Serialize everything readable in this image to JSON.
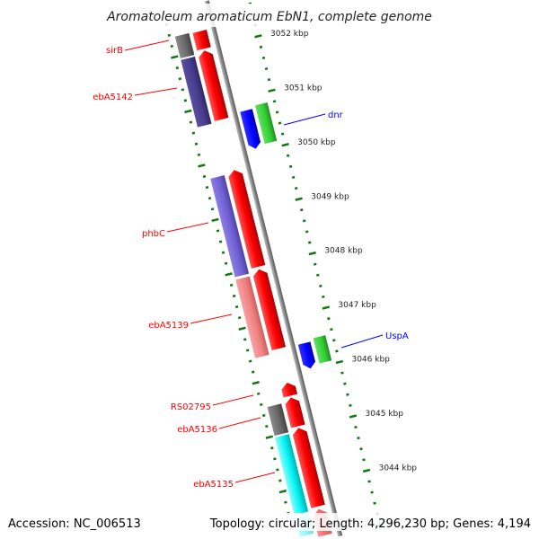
{
  "title": "Aromatoleum aromaticum EbN1, complete genome",
  "footer": {
    "accession": "Accession: NC_006513",
    "summary": "Topology: circular; Length: 4,296,230 bp; Genes: 4,194"
  },
  "kbp_labels": [
    "3052 kbp",
    "3051 kbp",
    "3050 kbp",
    "3049 kbp",
    "3048 kbp",
    "3047 kbp",
    "3046 kbp",
    "3045 kbp",
    "3044 kbp"
  ],
  "gene_labels": {
    "sirB": "sirB",
    "ebA5142": "ebA5142",
    "phbC": "phbC",
    "ebA5139": "ebA5139",
    "RS02795": "RS02795",
    "ebA5136": "ebA5136",
    "ebA5135": "ebA5135",
    "dnr": "dnr",
    "UspA": "UspA"
  },
  "colors": {
    "forward_cds": "#ff0000",
    "left_label": "#ff0000",
    "right_label": "#0000ff",
    "backbone": "#888888",
    "ticks": "#117711"
  }
}
